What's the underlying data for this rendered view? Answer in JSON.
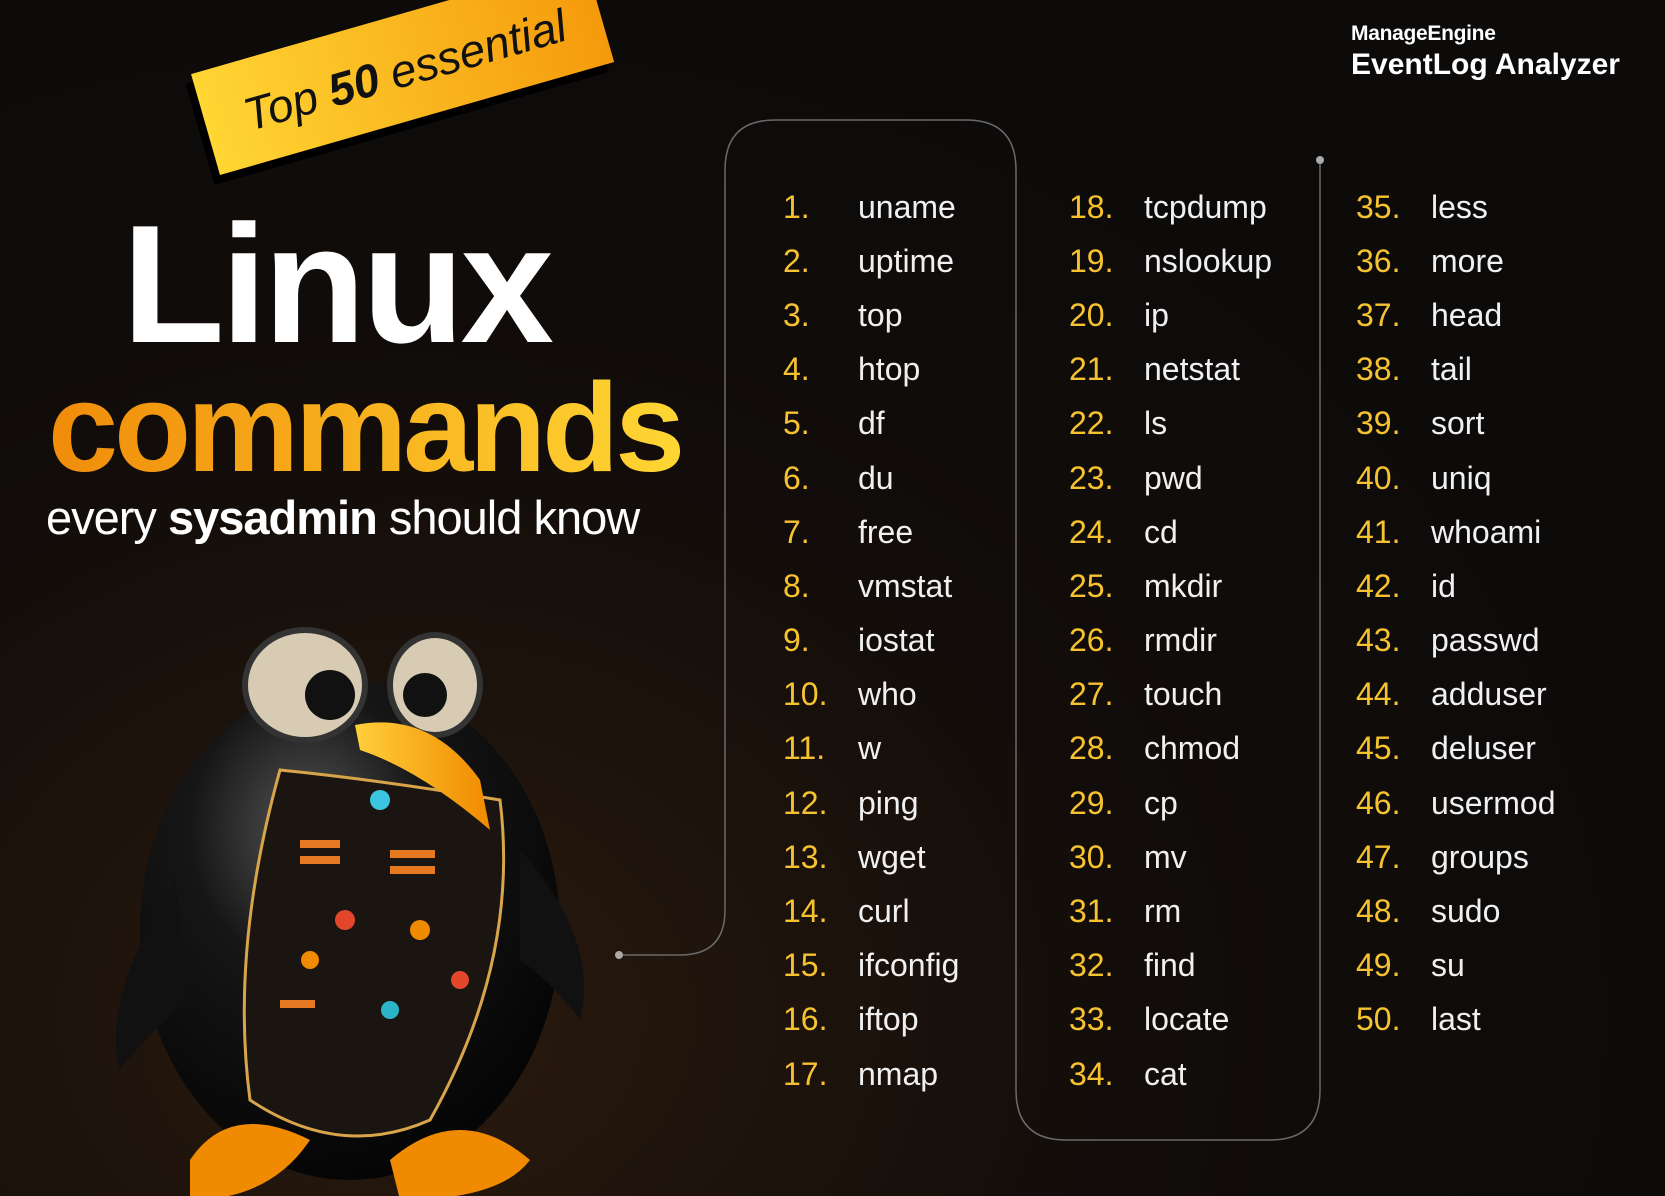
{
  "logo": {
    "brand": "ManageEngine",
    "product": "EventLog Analyzer"
  },
  "banner": {
    "prefix": "Top ",
    "number": "50",
    "suffix": " essential"
  },
  "title": {
    "line1": "Linux",
    "line2": "commands"
  },
  "subtitle": {
    "pre": "every ",
    "bold": "sysadmin",
    "post": " should know"
  },
  "colors": {
    "accent": "#f7c230",
    "orange": "#f08c0a",
    "background": "#0d0b0a"
  },
  "columns": [
    [
      [
        "1.",
        "uname"
      ],
      [
        "2.",
        "uptime"
      ],
      [
        "3.",
        "top"
      ],
      [
        "4.",
        "htop"
      ],
      [
        "5.",
        "df"
      ],
      [
        "6.",
        "du"
      ],
      [
        "7.",
        "free"
      ],
      [
        "8.",
        "vmstat"
      ],
      [
        "9.",
        "iostat"
      ],
      [
        "10.",
        "who"
      ],
      [
        "11.",
        "w"
      ],
      [
        "12.",
        "ping"
      ],
      [
        "13.",
        "wget"
      ],
      [
        "14.",
        "curl"
      ],
      [
        "15.",
        "ifconfig"
      ],
      [
        "16.",
        "iftop"
      ],
      [
        "17.",
        "nmap"
      ]
    ],
    [
      [
        "18.",
        "tcpdump"
      ],
      [
        "19.",
        "nslookup"
      ],
      [
        "20.",
        "ip"
      ],
      [
        "21.",
        "netstat"
      ],
      [
        "22.",
        "ls"
      ],
      [
        "23.",
        "pwd"
      ],
      [
        "24.",
        "cd"
      ],
      [
        "25.",
        "mkdir"
      ],
      [
        "26.",
        "rmdir"
      ],
      [
        "27.",
        "touch"
      ],
      [
        "28.",
        "chmod"
      ],
      [
        "29.",
        "cp"
      ],
      [
        "30.",
        "mv"
      ],
      [
        "31.",
        "rm"
      ],
      [
        "32.",
        "find"
      ],
      [
        "33.",
        "locate"
      ],
      [
        "34.",
        "cat"
      ]
    ],
    [
      [
        "35.",
        "less"
      ],
      [
        "36.",
        "more"
      ],
      [
        "37.",
        "head"
      ],
      [
        "38.",
        "tail"
      ],
      [
        "39.",
        "sort"
      ],
      [
        "40.",
        "uniq"
      ],
      [
        "41.",
        "whoami"
      ],
      [
        "42.",
        "id"
      ],
      [
        "43.",
        "passwd"
      ],
      [
        "44.",
        "adduser"
      ],
      [
        "45.",
        "deluser"
      ],
      [
        "46.",
        "usermod"
      ],
      [
        "47.",
        "groups"
      ],
      [
        "48.",
        "sudo"
      ],
      [
        "49.",
        "su"
      ],
      [
        "50.",
        "last"
      ]
    ]
  ]
}
